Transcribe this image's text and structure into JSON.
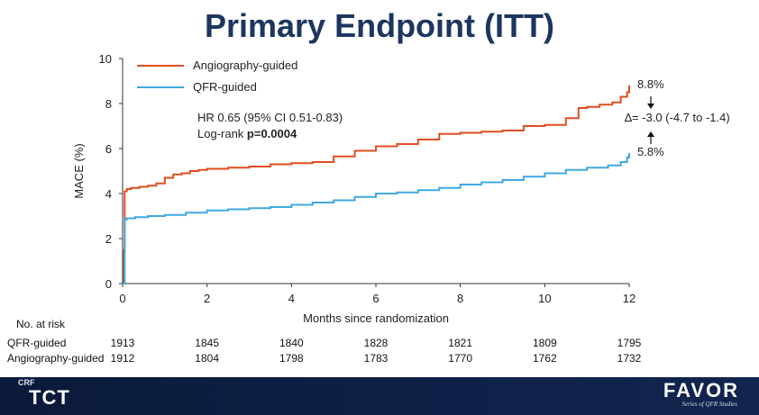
{
  "slide": {
    "title": "Primary Endpoint (ITT)"
  },
  "chart_data": {
    "type": "line",
    "xlabel": "Months since randomization",
    "ylabel": "MACE (%)",
    "xlim": [
      0,
      12
    ],
    "ylim": [
      0,
      10
    ],
    "xticks": [
      "0",
      "2",
      "4",
      "6",
      "8",
      "10",
      "12"
    ],
    "yticks": [
      "0",
      "2",
      "4",
      "6",
      "8",
      "10"
    ],
    "legend_position": "top-left",
    "series": [
      {
        "name": "Angiography-guided",
        "color": "#e04e1f",
        "x": [
          0,
          0.03,
          0.05,
          0.1,
          0.2,
          0.4,
          0.6,
          0.8,
          1.0,
          1.2,
          1.4,
          1.6,
          1.8,
          2.0,
          2.5,
          3.0,
          3.5,
          4.0,
          4.5,
          5.0,
          5.5,
          6.0,
          6.5,
          7.0,
          7.5,
          8.0,
          8.5,
          9.0,
          9.5,
          10.0,
          10.5,
          10.8,
          11.0,
          11.3,
          11.6,
          11.8,
          11.95,
          12.0
        ],
        "values": [
          0,
          1.5,
          4.1,
          4.2,
          4.25,
          4.3,
          4.35,
          4.45,
          4.7,
          4.85,
          4.9,
          5.0,
          5.05,
          5.1,
          5.15,
          5.2,
          5.3,
          5.35,
          5.4,
          5.65,
          5.9,
          6.1,
          6.2,
          6.4,
          6.65,
          6.7,
          6.75,
          6.8,
          7.0,
          7.05,
          7.35,
          7.8,
          7.85,
          7.95,
          8.05,
          8.3,
          8.5,
          8.8
        ]
      },
      {
        "name": "QFR-guided",
        "color": "#3fa9e0",
        "x": [
          0,
          0.05,
          0.1,
          0.3,
          0.6,
          1.0,
          1.5,
          2.0,
          2.5,
          3.0,
          3.5,
          4.0,
          4.5,
          5.0,
          5.5,
          6.0,
          6.5,
          7.0,
          7.5,
          8.0,
          8.5,
          9.0,
          9.5,
          10.0,
          10.5,
          11.0,
          11.5,
          11.8,
          11.95,
          12.0
        ],
        "values": [
          0,
          2.85,
          2.9,
          2.95,
          3.0,
          3.05,
          3.15,
          3.25,
          3.3,
          3.35,
          3.4,
          3.5,
          3.6,
          3.7,
          3.85,
          4.0,
          4.05,
          4.15,
          4.25,
          4.4,
          4.5,
          4.6,
          4.75,
          4.9,
          5.05,
          5.15,
          5.25,
          5.4,
          5.6,
          5.8
        ]
      }
    ],
    "annotations": {
      "hr_text": "HR 0.65 (95% CI 0.51-0.83)",
      "logrank_label": "Log-rank ",
      "logrank_value": "p=0.0004",
      "angio_end": "8.8%",
      "qfr_end": "5.8%",
      "delta": "∆= -3.0 (-4.7 to -1.4)"
    }
  },
  "risk_table": {
    "header": "No. at risk",
    "rows": [
      {
        "label": "QFR-guided",
        "values": [
          "1913",
          "1845",
          "1840",
          "1828",
          "1821",
          "1809",
          "1795"
        ]
      },
      {
        "label": "Angiography-guided",
        "values": [
          "1912",
          "1804",
          "1798",
          "1783",
          "1770",
          "1762",
          "1732"
        ]
      }
    ]
  },
  "footer": {
    "crf": "CRF",
    "tct": "TCT",
    "favor": "FAVOR",
    "favor_sub": "Series of QFR Studies"
  }
}
